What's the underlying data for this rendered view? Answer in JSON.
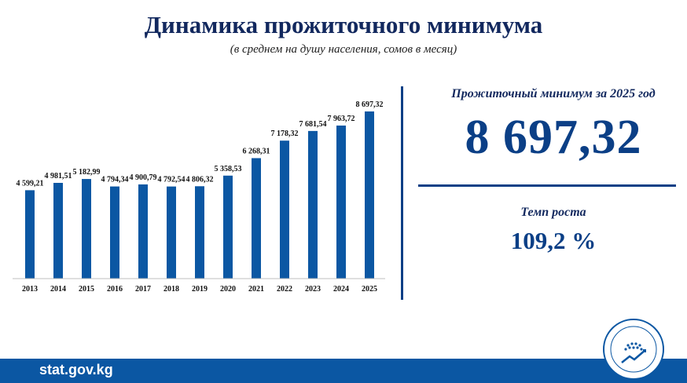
{
  "header": {
    "title": "Динамика прожиточного минимума",
    "subtitle": "(в среднем на душу населения, сомов в месяц)"
  },
  "kpi": {
    "label": "Прожиточный минимум за 2025 год",
    "value": "8 697,32",
    "growth_label": "Темп роста",
    "growth_value": "109,2 %"
  },
  "footer": {
    "site": "stat.gov.kg"
  },
  "logo": {
    "icon": "national-statistics-committee-emblem"
  },
  "colors": {
    "bar": "#0b57a3",
    "title": "#12285e",
    "accent": "#0b3f86",
    "footer": "#0b57a3"
  },
  "chart_data": {
    "type": "bar",
    "categories": [
      "2013",
      "2014",
      "2015",
      "2016",
      "2017",
      "2018",
      "2019",
      "2020",
      "2021",
      "2022",
      "2023",
      "2024",
      "2025"
    ],
    "values": [
      4599.21,
      4981.51,
      5182.99,
      4794.34,
      4900.79,
      4792.54,
      4806.32,
      5358.53,
      6268.31,
      7178.32,
      7681.54,
      7963.72,
      8697.32
    ],
    "labels": [
      "4 599,21",
      "4 981,51",
      "5 182,99",
      "4 794,34",
      "4 900,79",
      "4 792,54",
      "4 806,32",
      "5 358,53",
      "6 268,31",
      "7 178,32",
      "7 681,54",
      "7 963,72",
      "8 697,32"
    ],
    "grid": false,
    "legend": "none"
  }
}
